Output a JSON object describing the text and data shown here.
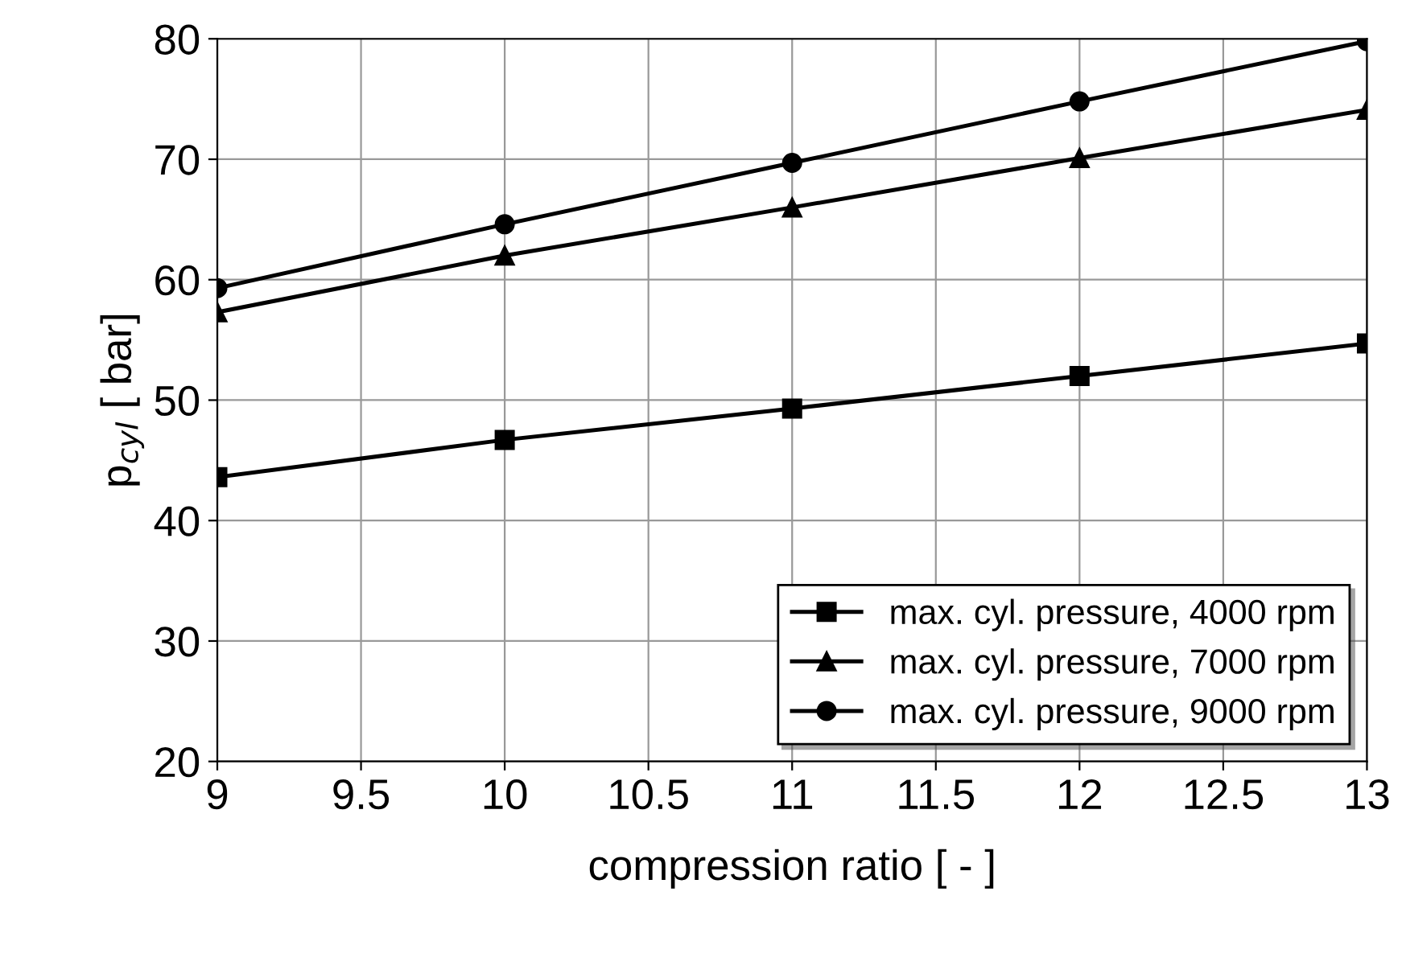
{
  "chart_data": {
    "type": "line",
    "xlabel": "compression ratio [ - ]",
    "ylabel": "p$_{cyl}$ [ bar]",
    "x": [
      9,
      10,
      11,
      12,
      13
    ],
    "series": [
      {
        "name": "max. cyl. pressure, 4000 rpm",
        "color": "#000000",
        "marker": "square",
        "values": [
          43.6,
          46.7,
          49.3,
          52.0,
          54.7
        ]
      },
      {
        "name": "max. cyl. pressure, 7000 rpm",
        "color": "#000000",
        "marker": "triangle",
        "values": [
          57.3,
          62.0,
          66.0,
          70.1,
          74.1
        ]
      },
      {
        "name": "max. cyl. pressure, 9000 rpm",
        "color": "#000000",
        "marker": "circle",
        "values": [
          59.3,
          64.6,
          69.7,
          74.8,
          79.8
        ]
      }
    ],
    "xlim": [
      9,
      13
    ],
    "xticks": [
      9,
      9.5,
      10,
      10.5,
      11,
      11.5,
      12,
      12.5,
      13
    ],
    "ylim": [
      20,
      80
    ],
    "yticks": [
      20,
      30,
      40,
      50,
      60,
      70,
      80
    ],
    "grid": true,
    "legend": "bottom right",
    "line_style": "solid"
  }
}
